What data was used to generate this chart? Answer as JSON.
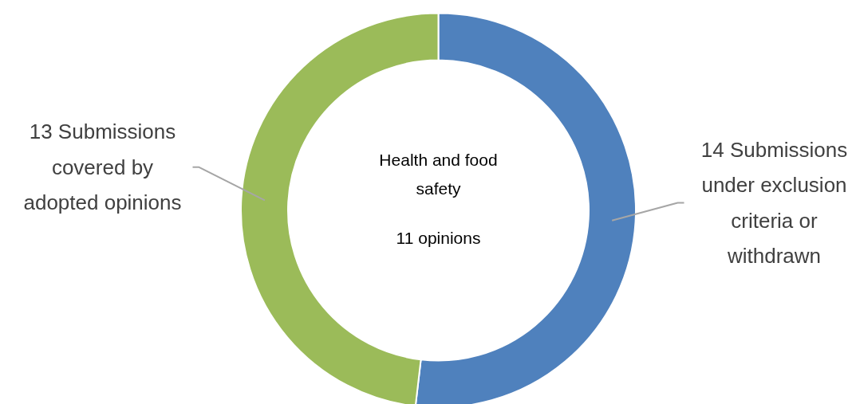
{
  "chart_data": {
    "type": "donut",
    "categories": [
      "14 Submissions under exclusion criteria or withdrawn",
      "13 Submissions covered by adopted opinions"
    ],
    "values": [
      14,
      13
    ],
    "colors": [
      "#4f81bd",
      "#9bbb59"
    ],
    "annotations": [
      "Health and food safety",
      "11 opinions"
    ]
  }
}
